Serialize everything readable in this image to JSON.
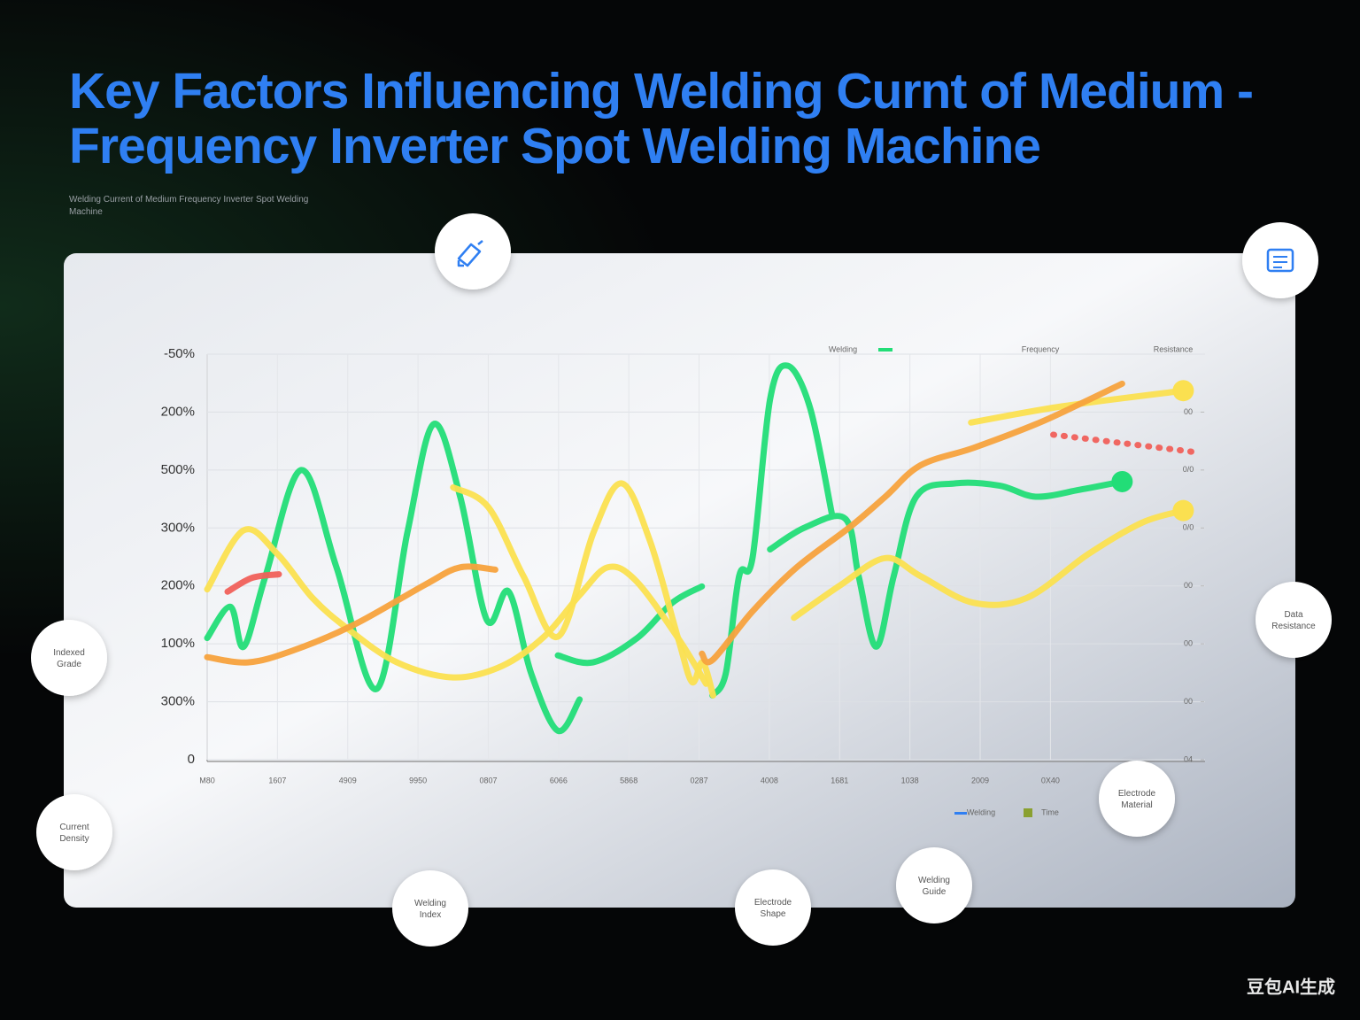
{
  "chart_data": {
    "type": "line",
    "title": "Key Factors Influencing Welding Curnt of Medium - Frequency Inverter Spot Welding Machine",
    "subtitle": "Welding Current of Medium Frequency Inverter Spot Welding Machine",
    "xlim": [
      0,
      14.2
    ],
    "xticks": [
      {
        "value": 0,
        "label": "M80"
      },
      {
        "value": 1,
        "label": "1607"
      },
      {
        "value": 2,
        "label": "4909"
      },
      {
        "value": 3,
        "label": "9950"
      },
      {
        "value": 4,
        "label": "0807"
      },
      {
        "value": 5,
        "label": "6066"
      },
      {
        "value": 6,
        "label": "5868"
      },
      {
        "value": 7,
        "label": "0287"
      },
      {
        "value": 8,
        "label": "4008"
      },
      {
        "value": 9,
        "label": "1681"
      },
      {
        "value": 10,
        "label": "1038"
      },
      {
        "value": 11,
        "label": "2009"
      },
      {
        "value": 12,
        "label": "0X40"
      }
    ],
    "ylim": [
      0,
      7
    ],
    "yticks": [
      0,
      {
        "value": 1,
        "label": "300%"
      },
      {
        "value": 2,
        "label": "100%"
      },
      {
        "value": 3,
        "label": "200%"
      },
      {
        "value": 4,
        "label": "300%"
      },
      {
        "value": 5,
        "label": "500%"
      },
      {
        "value": 6,
        "label": "200%"
      },
      {
        "value": 7,
        "label": "-50%"
      }
    ],
    "y2lim": [
      0,
      7
    ],
    "y2ticks": [
      {
        "value": 0,
        "label": "04"
      },
      {
        "value": 1,
        "label": "00"
      },
      {
        "value": 2,
        "label": "00"
      },
      {
        "value": 3,
        "label": "00"
      },
      {
        "value": 4,
        "label": "0/0"
      },
      {
        "value": 5,
        "label": "0/0"
      },
      {
        "value": 6,
        "label": "00"
      }
    ],
    "grid": true,
    "legend": [
      "Welding",
      "Frequency",
      "Resistance"
    ],
    "legend_bottom": [
      "Welding",
      "Time"
    ],
    "series": [
      {
        "color": "#22dd77",
        "x": [
          0,
          0.33,
          0.52,
          0.83,
          1.34,
          1.84,
          2.41,
          2.85,
          3.22,
          3.6,
          3.98,
          4.29,
          4.61,
          4.99,
          5.3,
          null,
          4.99,
          5.49,
          6.12,
          6.62,
          7.04,
          null,
          7.19,
          7.38,
          7.57,
          7.76,
          8.01,
          8.26,
          8.58,
          8.89,
          null,
          8.01,
          8.51,
          9.08,
          9.27,
          9.52,
          9.77,
          10.09,
          10.65,
          11.28,
          11.79,
          12.42,
          13.02
        ],
        "values": [
          2.1,
          2.64,
          1.95,
          3.17,
          5.0,
          3.32,
          1.22,
          3.93,
          5.79,
          4.54,
          2.41,
          2.9,
          1.49,
          0.5,
          1.04,
          null,
          1.8,
          1.68,
          2.1,
          2.71,
          2.99,
          null,
          1.11,
          1.49,
          3.17,
          3.48,
          6.22,
          6.8,
          6.07,
          4.24,
          null,
          3.63,
          4.01,
          4.16,
          3.17,
          1.95,
          3.17,
          4.54,
          4.77,
          4.73,
          4.54,
          4.66,
          4.8
        ],
        "end_dot": true
      },
      {
        "color": "#fbe050",
        "x": [
          0,
          0.52,
          1.0,
          1.5,
          2.0,
          2.7,
          3.5,
          4.2,
          4.8,
          5.3,
          5.7,
          6.1,
          6.7,
          7.1
        ],
        "values": [
          2.94,
          3.96,
          3.55,
          2.79,
          2.26,
          1.68,
          1.42,
          1.62,
          2.13,
          2.84,
          3.32,
          3.09,
          2.1,
          1.31
        ]
      },
      {
        "color": "#fbe050",
        "x": [
          3.5,
          4.0,
          4.5,
          5.0,
          5.5,
          5.9,
          6.3,
          6.7,
          6.9,
          7.05,
          7.2
        ],
        "values": [
          4.7,
          4.36,
          3.17,
          2.13,
          3.93,
          4.77,
          3.78,
          2.1,
          1.34,
          1.68,
          1.11
        ]
      },
      {
        "color": "#fbe050",
        "x": [
          8.35,
          9.02,
          9.65,
          10.15,
          10.9,
          11.66,
          12.54,
          13.3,
          13.89
        ],
        "values": [
          2.45,
          3.02,
          3.48,
          3.17,
          2.71,
          2.79,
          3.55,
          4.09,
          4.3
        ],
        "end_dot": true
      },
      {
        "color": "#fbe050",
        "x": [
          10.87,
          12.17,
          13.89
        ],
        "values": [
          5.82,
          6.1,
          6.37
        ],
        "end_dot": true
      },
      {
        "color": "#f7a23d",
        "x": [
          0,
          0.58,
          1.21,
          2.09,
          3.1,
          3.6,
          4.1,
          null,
          7.04,
          7.19,
          7.76,
          8.39,
          9.14,
          9.65,
          10.15,
          10.9,
          11.79,
          12.42,
          13.02
        ],
        "values": [
          1.77,
          1.68,
          1.88,
          2.33,
          3.02,
          3.32,
          3.28,
          null,
          1.83,
          1.72,
          2.56,
          3.32,
          4.01,
          4.54,
          5.08,
          5.38,
          5.79,
          6.14,
          6.49
        ]
      },
      {
        "color": "#f0605a",
        "x": [
          0.29,
          0.64,
          1.02
        ],
        "values": [
          2.9,
          3.14,
          3.2
        ]
      },
      {
        "color": "#f0605a",
        "x": [
          12.04,
          13.05,
          14.12
        ],
        "values": [
          5.61,
          5.46,
          5.3
        ],
        "style": "dotted"
      }
    ],
    "annotations": [
      "Indexed Grade",
      "Current Density",
      "Welding Index",
      "Electrode Shape",
      "Welding Guide",
      "Electrode Material",
      "Data Resistance"
    ],
    "watermark": "豆包AI生成"
  }
}
